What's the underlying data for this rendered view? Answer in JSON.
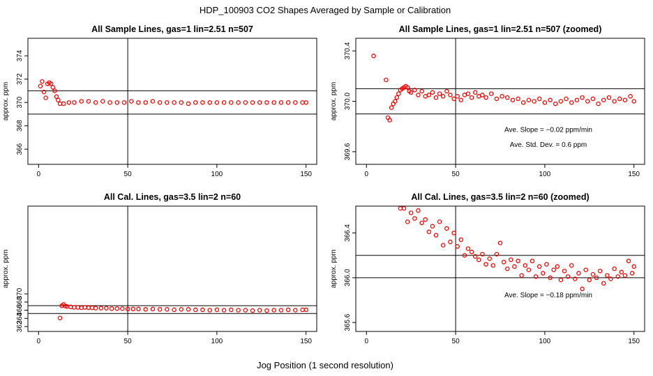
{
  "figure": {
    "title": "HDP_100903  CO2 Shapes Averaged by Sample or Calibration",
    "xlabel": "Jog Position (1 second resolution)",
    "colors": {
      "points": "#ff0000",
      "axes": "#000000",
      "background": "#ffffff"
    }
  },
  "chart_data": [
    {
      "id": "p1",
      "type": "scatter",
      "title": "All Sample Lines, gas=1 lin=2.51 n=507",
      "ylabel": "approx. ppm",
      "xlim": [
        -6,
        156
      ],
      "ylim": [
        364.7,
        375.5
      ],
      "xticks": [
        0,
        50,
        100,
        150
      ],
      "xtick_labels": [
        "0",
        "50",
        "100",
        "150"
      ],
      "yticks": [
        366,
        368,
        370,
        372,
        374
      ],
      "ytick_labels": [
        "366",
        "368",
        "370",
        "372",
        "374"
      ],
      "vline": 50,
      "hlines": [
        369,
        371
      ],
      "annotations": [],
      "series": [
        {
          "x": [
            1,
            2,
            3,
            4,
            5,
            6,
            7,
            8,
            9,
            10,
            11,
            12,
            14,
            17,
            20,
            24,
            28,
            32,
            36,
            40,
            44,
            48,
            52,
            56,
            60,
            64,
            68,
            72,
            76,
            80,
            84,
            88,
            92,
            96,
            100,
            104,
            108,
            112,
            116,
            120,
            124,
            128,
            132,
            136,
            140,
            144,
            148,
            150
          ],
          "y": [
            371.4,
            371.8,
            370.9,
            370.4,
            371.6,
            371.7,
            371.6,
            371.3,
            371.0,
            370.5,
            370.2,
            369.9,
            369.9,
            370.0,
            370.0,
            370.1,
            370.1,
            370.0,
            370.1,
            370.0,
            370.0,
            370.0,
            370.1,
            370.0,
            370.0,
            370.1,
            370.0,
            370.0,
            370.0,
            370.0,
            369.9,
            370.0,
            370.0,
            370.0,
            370.0,
            370.0,
            370.0,
            370.0,
            370.0,
            370.0,
            370.0,
            370.0,
            370.0,
            370.0,
            370.0,
            370.0,
            370.0,
            370.0
          ]
        }
      ]
    },
    {
      "id": "p2",
      "type": "scatter",
      "title": "All Sample Lines, gas=1 lin=2.51 n=507 (zoomed)",
      "ylabel": "approx. ppm",
      "xlim": [
        -6,
        156
      ],
      "ylim": [
        369.5,
        370.5
      ],
      "xticks": [
        0,
        50,
        100,
        150
      ],
      "xtick_labels": [
        "0",
        "50",
        "100",
        "150"
      ],
      "yticks": [
        369.6,
        370.0,
        370.4
      ],
      "ytick_labels": [
        "369.6",
        "370.0",
        "370.4"
      ],
      "vline": 50,
      "hlines": [
        369.9,
        370.1
      ],
      "annotations": [
        {
          "text": "Ave. Slope =  −0.02  ppm/min",
          "x": 102,
          "y": 369.78
        },
        {
          "text": "Ave. Std. Dev. =  0.6  ppm",
          "x": 102,
          "y": 369.66
        }
      ],
      "series": [
        {
          "x": [
            4,
            11,
            12,
            13,
            14,
            15,
            16,
            17,
            18,
            19,
            20,
            21,
            22,
            23,
            24,
            25,
            27,
            29,
            31,
            33,
            35,
            37,
            39,
            41,
            43,
            45,
            47,
            49,
            51,
            53,
            55,
            57,
            59,
            61,
            63,
            65,
            67,
            70,
            73,
            76,
            79,
            82,
            85,
            88,
            91,
            94,
            97,
            100,
            103,
            106,
            109,
            112,
            115,
            118,
            121,
            124,
            127,
            130,
            133,
            136,
            139,
            142,
            145,
            148,
            150
          ],
          "y": [
            370.36,
            370.17,
            369.87,
            369.85,
            369.95,
            369.98,
            370.0,
            370.03,
            370.06,
            370.09,
            370.1,
            370.11,
            370.12,
            370.11,
            370.08,
            370.07,
            370.09,
            370.05,
            370.08,
            370.04,
            370.05,
            370.07,
            370.03,
            370.06,
            370.04,
            370.08,
            370.05,
            370.02,
            370.04,
            370.01,
            370.05,
            370.06,
            370.03,
            370.07,
            370.04,
            370.05,
            370.03,
            370.06,
            370.02,
            370.04,
            370.03,
            370.01,
            370.02,
            369.99,
            370.01,
            370.0,
            370.02,
            369.99,
            370.01,
            369.98,
            370.0,
            370.02,
            369.99,
            370.01,
            370.03,
            370.0,
            370.02,
            369.98,
            370.01,
            370.03,
            370.0,
            370.02,
            370.01,
            370.04,
            370.0
          ]
        }
      ]
    },
    {
      "id": "p3",
      "type": "scatter",
      "title": "All Cal. Lines, gas=3.5 lin=2 n=60",
      "ylabel": "approx. ppm",
      "xlim": [
        -6,
        156
      ],
      "ylim": [
        360.8,
        391.5
      ],
      "xticks": [
        0,
        50,
        100,
        150
      ],
      "xtick_labels": [
        "0",
        "50",
        "100",
        "150"
      ],
      "yticks": [
        362,
        364,
        366,
        368,
        370
      ],
      "ytick_labels": [
        "362",
        "364",
        "366",
        "368",
        "370"
      ],
      "vline": 50,
      "hlines": [
        365.2,
        367.1
      ],
      "annotations": [],
      "series": [
        {
          "x": [
            12,
            13,
            14,
            15,
            16,
            18,
            20,
            22,
            24,
            26,
            28,
            30,
            32,
            35,
            38,
            41,
            44,
            47,
            50,
            53,
            56,
            60,
            64,
            68,
            72,
            76,
            80,
            84,
            88,
            92,
            96,
            100,
            104,
            108,
            112,
            116,
            120,
            124,
            128,
            132,
            136,
            140,
            144,
            148,
            150
          ],
          "y": [
            364.1,
            367.1,
            367.4,
            367.0,
            366.9,
            366.8,
            366.7,
            366.7,
            366.6,
            366.7,
            366.6,
            366.6,
            366.5,
            366.5,
            366.5,
            366.4,
            366.4,
            366.4,
            366.3,
            366.3,
            366.3,
            366.2,
            366.3,
            366.2,
            366.2,
            366.1,
            366.2,
            366.2,
            366.1,
            366.1,
            366.0,
            366.1,
            366.0,
            366.1,
            366.0,
            366.0,
            365.9,
            366.0,
            365.9,
            366.0,
            366.0,
            366.1,
            366.0,
            366.1,
            366.1
          ]
        }
      ]
    },
    {
      "id": "p4",
      "type": "scatter",
      "title": "All Cal. Lines, gas=3.5 lin=2 n=60 (zoomed)",
      "ylabel": "approx. ppm",
      "xlim": [
        -6,
        156
      ],
      "ylim": [
        365.52,
        366.64
      ],
      "xticks": [
        0,
        50,
        100,
        150
      ],
      "xtick_labels": [
        "0",
        "50",
        "100",
        "150"
      ],
      "yticks": [
        365.6,
        366.0,
        366.4
      ],
      "ytick_labels": [
        "365.6",
        "366.0",
        "366.4"
      ],
      "vline": 50,
      "hlines": [
        366.0,
        366.2
      ],
      "annotations": [
        {
          "text": "Ave. Slope =  −0.18  ppm/min",
          "x": 102,
          "y": 365.85
        }
      ],
      "series": [
        {
          "x": [
            19,
            21,
            23,
            25,
            27,
            29,
            31,
            33,
            35,
            37,
            39,
            41,
            43,
            45,
            47,
            49,
            51,
            53,
            55,
            57,
            59,
            61,
            63,
            65,
            67,
            69,
            71,
            73,
            75,
            77,
            79,
            81,
            83,
            85,
            87,
            89,
            91,
            93,
            95,
            97,
            99,
            101,
            103,
            105,
            107,
            109,
            111,
            113,
            115,
            117,
            119,
            121,
            123,
            125,
            127,
            129,
            131,
            133,
            135,
            137,
            139,
            141,
            143,
            145,
            147,
            149,
            150
          ],
          "y": [
            366.62,
            366.62,
            366.5,
            366.58,
            366.53,
            366.6,
            366.49,
            366.52,
            366.41,
            366.46,
            366.38,
            366.5,
            366.29,
            366.44,
            366.32,
            366.4,
            366.28,
            366.34,
            366.2,
            366.26,
            366.23,
            366.19,
            366.16,
            366.21,
            366.12,
            366.17,
            366.11,
            366.21,
            366.31,
            366.14,
            366.08,
            366.16,
            366.1,
            366.15,
            366.02,
            366.11,
            366.07,
            366.15,
            366.01,
            366.1,
            366.04,
            366.12,
            366.0,
            366.07,
            366.1,
            365.98,
            366.06,
            366.01,
            366.11,
            365.99,
            366.04,
            365.9,
            366.07,
            365.98,
            366.03,
            366.0,
            366.06,
            365.95,
            366.02,
            365.99,
            366.08,
            366.01,
            366.05,
            366.02,
            366.15,
            366.04,
            366.1
          ]
        }
      ]
    }
  ]
}
